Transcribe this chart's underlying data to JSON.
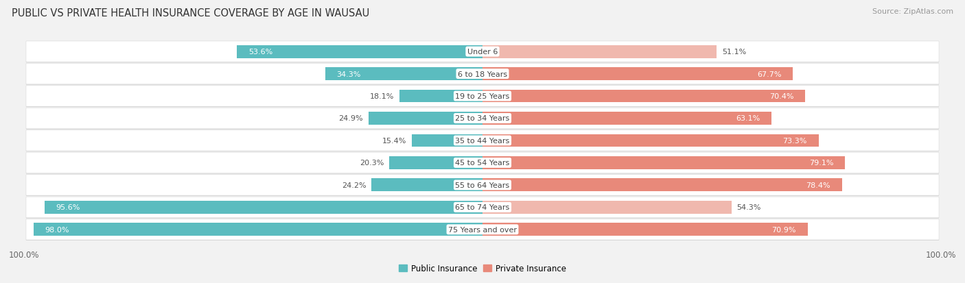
{
  "title": "PUBLIC VS PRIVATE HEALTH INSURANCE COVERAGE BY AGE IN WAUSAU",
  "source": "Source: ZipAtlas.com",
  "categories": [
    "Under 6",
    "6 to 18 Years",
    "19 to 25 Years",
    "25 to 34 Years",
    "35 to 44 Years",
    "45 to 54 Years",
    "55 to 64 Years",
    "65 to 74 Years",
    "75 Years and over"
  ],
  "public_values": [
    53.6,
    34.3,
    18.1,
    24.9,
    15.4,
    20.3,
    24.2,
    95.6,
    98.0
  ],
  "private_values": [
    51.1,
    67.7,
    70.4,
    63.1,
    73.3,
    79.1,
    78.4,
    54.3,
    70.9
  ],
  "public_colors": [
    "#5bbcbf",
    "#5bbcbf",
    "#5bbcbf",
    "#5bbcbf",
    "#5bbcbf",
    "#5bbcbf",
    "#5bbcbf",
    "#5bbcbf",
    "#5bbcbf"
  ],
  "private_colors": [
    "#f0b8ae",
    "#e8897a",
    "#e8897a",
    "#e8897a",
    "#e8897a",
    "#e8897a",
    "#e8897a",
    "#f0b8ae",
    "#e8897a"
  ],
  "background_color": "#f2f2f2",
  "row_bg_color": "#ffffff",
  "row_border_color": "#d8d8d8",
  "max_value": 100.0,
  "title_fontsize": 10.5,
  "label_fontsize": 8.0,
  "value_fontsize": 8.0,
  "legend_fontsize": 8.5,
  "source_fontsize": 8.0,
  "xlabel_fontsize": 8.5
}
